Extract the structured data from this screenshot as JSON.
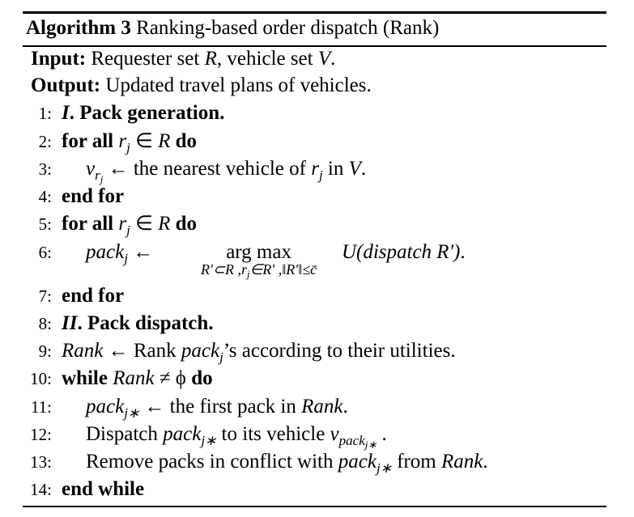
{
  "algorithm": {
    "label": "Algorithm 3",
    "title": "Ranking-based order dispatch (Rank)"
  },
  "input": [
    "Input:",
    "Requester set ",
    "R",
    ", vehicle set ",
    "V",
    "."
  ],
  "output": [
    "Output:",
    "Updated travel plans of vehicles."
  ],
  "lines": [
    {
      "number": "1:",
      "parts": [
        "I",
        ". Pack generation."
      ]
    },
    {
      "number": "2:",
      "parts": [
        "for all",
        "r",
        "j",
        "∈",
        "R",
        "do"
      ]
    },
    {
      "number": "3:",
      "parts": [
        "v",
        "r",
        "j",
        "← the nearest vehicle of ",
        "r",
        "j",
        " in ",
        "V",
        "."
      ]
    },
    {
      "number": "4:",
      "parts": [
        "end for"
      ]
    },
    {
      "number": "5:",
      "parts": [
        "for all",
        "r",
        "j",
        "∈",
        "R",
        "do"
      ]
    },
    {
      "number": "6:",
      "parts": [
        "pack",
        "j",
        "←",
        "arg max",
        "R′⊂R ,r",
        "j",
        "∈R′ ,‖R′‖≤c̄",
        "U(dispatch R′)",
        "."
      ]
    },
    {
      "number": "7:",
      "parts": [
        "end for"
      ]
    },
    {
      "number": "8:",
      "parts": [
        "II",
        ". Pack dispatch."
      ]
    },
    {
      "number": "9:",
      "parts": [
        "Rank",
        " ← Rank ",
        "pack",
        "j",
        "’s according to their utilities."
      ]
    },
    {
      "number": "10:",
      "parts": [
        "while",
        "Rank",
        "≠ ϕ",
        "do"
      ]
    },
    {
      "number": "11:",
      "parts": [
        "pack",
        "j∗",
        " ← the first pack in ",
        "Rank",
        "."
      ]
    },
    {
      "number": "12:",
      "parts": [
        "Dispatch ",
        "pack",
        "j∗",
        " to its vehicle ",
        "v",
        "pack",
        "j∗",
        " ."
      ]
    },
    {
      "number": "13:",
      "parts": [
        "Remove packs in conflict with ",
        "pack",
        "j∗",
        " from ",
        "Rank",
        "."
      ]
    },
    {
      "number": "14:",
      "parts": [
        "end while"
      ]
    }
  ]
}
